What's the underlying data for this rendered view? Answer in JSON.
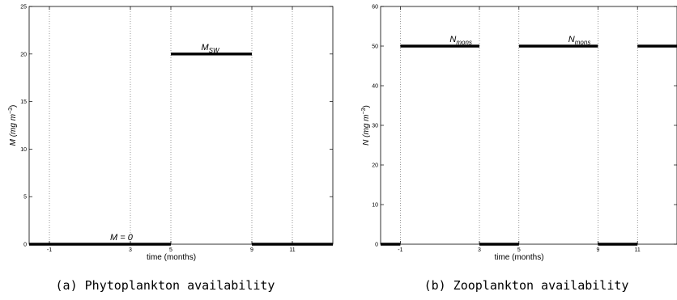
{
  "chart_data": [
    {
      "type": "line",
      "caption": "(a) Phytoplankton availability",
      "xlabel": "time (months)",
      "ylabel": {
        "main": "M (mg m",
        "sup": "−3",
        "close": ")"
      },
      "xlim": [
        -2,
        13
      ],
      "ylim": [
        0,
        25
      ],
      "xticks": [
        -1,
        3,
        5,
        9,
        11
      ],
      "yticks": [
        0,
        5,
        10,
        15,
        20,
        25
      ],
      "vlines": [
        -1,
        3,
        5,
        9,
        11
      ],
      "grid": false,
      "series": [
        {
          "segments": [
            [
              -2,
              3,
              0
            ],
            [
              3,
              5,
              0
            ],
            [
              5,
              9,
              20
            ],
            [
              9,
              11,
              0
            ],
            [
              11,
              13,
              0
            ]
          ]
        }
      ],
      "annotations": [
        {
          "text": "M = 0",
          "sub": "",
          "x": 2,
          "y": 0
        },
        {
          "text": "M",
          "sub": "SW",
          "x": 6.5,
          "y": 20
        }
      ]
    },
    {
      "type": "line",
      "caption": "(b) Zooplankton availability",
      "xlabel": "time (months)",
      "ylabel": {
        "main": "N (mg m",
        "sup": "−3",
        "close": ")"
      },
      "xlim": [
        -2,
        13
      ],
      "ylim": [
        0,
        60
      ],
      "xticks": [
        -1,
        3,
        5,
        9,
        11
      ],
      "yticks": [
        0,
        10,
        20,
        30,
        40,
        50,
        60
      ],
      "vlines": [
        -1,
        3,
        5,
        9,
        11
      ],
      "grid": false,
      "series": [
        {
          "segments": [
            [
              -2,
              -1,
              0
            ],
            [
              -1,
              3,
              50
            ],
            [
              3,
              5,
              0
            ],
            [
              5,
              9,
              50
            ],
            [
              9,
              11,
              0
            ],
            [
              11,
              13,
              50
            ]
          ]
        }
      ],
      "annotations": [
        {
          "text": "N",
          "sub": "mons",
          "x": 1.5,
          "y": 50
        },
        {
          "text": "N",
          "sub": "mons",
          "x": 7.5,
          "y": 50
        }
      ]
    }
  ]
}
